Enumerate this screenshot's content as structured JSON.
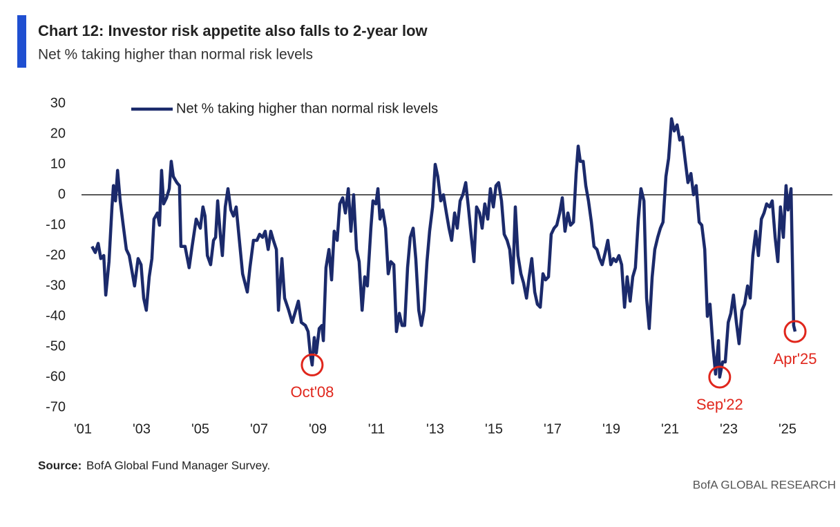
{
  "chart_data": {
    "type": "line",
    "title": "Chart 12: Investor risk appetite also falls to 2-year low",
    "subtitle": "Net % taking higher than normal risk levels",
    "source_label": "Source:",
    "source": "BofA Global Fund Manager Survey.",
    "brand": "BofA GLOBAL RESEARCH",
    "x": [
      2001.31,
      2001.42,
      2001.52,
      2001.61,
      2001.71,
      2001.78,
      2001.89,
      2001.99,
      2002.04,
      2002.11,
      2002.18,
      2002.27,
      2002.36,
      2002.48,
      2002.58,
      2002.76,
      2002.88,
      2002.98,
      2003.07,
      2003.16,
      2003.26,
      2003.35,
      2003.42,
      2003.54,
      2003.61,
      2003.68,
      2003.75,
      2003.85,
      2003.94,
      2004.01,
      2004.08,
      2004.2,
      2004.29,
      2004.34,
      2004.48,
      2004.62,
      2004.72,
      2004.86,
      2005.0,
      2005.09,
      2005.16,
      2005.24,
      2005.35,
      2005.45,
      2005.52,
      2005.59,
      2005.68,
      2005.75,
      2005.85,
      2005.94,
      2006.04,
      2006.13,
      2006.22,
      2006.32,
      2006.44,
      2006.6,
      2006.69,
      2006.81,
      2006.93,
      2007.02,
      2007.12,
      2007.21,
      2007.31,
      2007.4,
      2007.49,
      2007.59,
      2007.66,
      2007.78,
      2007.87,
      2008.01,
      2008.13,
      2008.25,
      2008.34,
      2008.44,
      2008.58,
      2008.67,
      2008.74,
      2008.81,
      2008.88,
      2008.95,
      2009.05,
      2009.14,
      2009.19,
      2009.28,
      2009.38,
      2009.47,
      2009.56,
      2009.66,
      2009.75,
      2009.85,
      2009.94,
      2010.04,
      2010.13,
      2010.22,
      2010.32,
      2010.41,
      2010.51,
      2010.6,
      2010.69,
      2010.81,
      2010.88,
      2010.98,
      2011.05,
      2011.12,
      2011.21,
      2011.31,
      2011.4,
      2011.49,
      2011.59,
      2011.68,
      2011.78,
      2011.87,
      2011.96,
      2012.06,
      2012.15,
      2012.25,
      2012.34,
      2012.44,
      2012.53,
      2012.62,
      2012.72,
      2012.81,
      2012.91,
      2013.0,
      2013.09,
      2013.19,
      2013.28,
      2013.38,
      2013.47,
      2013.56,
      2013.66,
      2013.75,
      2013.85,
      2013.94,
      2014.04,
      2014.13,
      2014.22,
      2014.32,
      2014.41,
      2014.51,
      2014.6,
      2014.69,
      2014.79,
      2014.88,
      2014.98,
      2015.07,
      2015.16,
      2015.26,
      2015.35,
      2015.45,
      2015.54,
      2015.64,
      2015.73,
      2015.82,
      2015.92,
      2016.01,
      2016.11,
      2016.2,
      2016.29,
      2016.39,
      2016.48,
      2016.58,
      2016.67,
      2016.76,
      2016.86,
      2016.95,
      2017.05,
      2017.14,
      2017.24,
      2017.33,
      2017.42,
      2017.52,
      2017.61,
      2017.71,
      2017.8,
      2017.87,
      2017.94,
      2018.04,
      2018.13,
      2018.22,
      2018.32,
      2018.41,
      2018.51,
      2018.6,
      2018.69,
      2018.79,
      2018.88,
      2018.98,
      2019.07,
      2019.16,
      2019.26,
      2019.35,
      2019.45,
      2019.54,
      2019.64,
      2019.73,
      2019.82,
      2019.92,
      2020.01,
      2020.11,
      2020.2,
      2020.29,
      2020.39,
      2020.48,
      2020.58,
      2020.67,
      2020.76,
      2020.86,
      2020.95,
      2021.05,
      2021.14,
      2021.24,
      2021.33,
      2021.42,
      2021.52,
      2021.61,
      2021.71,
      2021.8,
      2021.89,
      2021.99,
      2022.08,
      2022.18,
      2022.27,
      2022.36,
      2022.46,
      2022.55,
      2022.65,
      2022.69,
      2022.79,
      2022.88,
      2022.98,
      2023.07,
      2023.16,
      2023.26,
      2023.35,
      2023.45,
      2023.54,
      2023.64,
      2023.73,
      2023.82,
      2023.92,
      2024.01,
      2024.11,
      2024.2,
      2024.29,
      2024.39,
      2024.48,
      2024.58,
      2024.67,
      2024.76,
      2024.86,
      2024.95,
      2025.02,
      2025.12,
      2025.21,
      2025.26
    ],
    "series": [
      {
        "name": "Net % taking higher than normal risk levels",
        "color": "#1b2a6b",
        "values": [
          -17,
          -19,
          -16,
          -21,
          -20,
          -33,
          -22,
          -4,
          3,
          -2,
          8,
          -2,
          -9,
          -18,
          -20,
          -30,
          -21,
          -23,
          -34,
          -38,
          -27,
          -21,
          -8,
          -6,
          -10,
          8,
          -3,
          -1,
          2,
          11,
          6,
          4,
          3,
          -17,
          -17,
          -24,
          -17,
          -8,
          -11,
          -4,
          -7,
          -20,
          -23,
          -15,
          -14,
          -2,
          -13,
          -20,
          -4,
          2,
          -5,
          -7,
          -4,
          -14,
          -26,
          -32,
          -24,
          -15,
          -15,
          -13,
          -14,
          -12,
          -18,
          -12,
          -15,
          -18,
          -38,
          -21,
          -34,
          -38,
          -42,
          -38,
          -35,
          -42,
          -43,
          -45,
          -52,
          -56,
          -47,
          -52,
          -44,
          -43,
          -48,
          -24,
          -18,
          -28,
          -12,
          -15,
          -3,
          -1,
          -6,
          2,
          -12,
          0,
          -18,
          -22,
          -38,
          -27,
          -30,
          -11,
          -2,
          -3,
          2,
          -8,
          -5,
          -11,
          -26,
          -22,
          -23,
          -45,
          -39,
          -43,
          -43,
          -24,
          -14,
          -11,
          -21,
          -38,
          -43,
          -38,
          -22,
          -12,
          -4,
          10,
          6,
          -2,
          0,
          -6,
          -11,
          -15,
          -6,
          -11,
          -2,
          0,
          4,
          -4,
          -13,
          -22,
          -4,
          -6,
          -11,
          -3,
          -8,
          2,
          -4,
          3,
          4,
          -2,
          -13,
          -15,
          -18,
          -29,
          -4,
          -20,
          -26,
          -29,
          -34,
          -27,
          -21,
          -32,
          -36,
          -37,
          -26,
          -28,
          -27,
          -13,
          -11,
          -10,
          -6,
          -1,
          -12,
          -6,
          -10,
          -9,
          7,
          16,
          11,
          11,
          3,
          -2,
          -9,
          -17,
          -18,
          -21,
          -23,
          -19,
          -15,
          -23,
          -21,
          -22,
          -20,
          -23,
          -37,
          -27,
          -35,
          -27,
          -24,
          -8,
          2,
          -2,
          -34,
          -44,
          -27,
          -18,
          -14,
          -11,
          -9,
          6,
          12,
          25,
          21,
          23,
          18,
          19,
          11,
          4,
          7,
          0,
          3,
          -9,
          -10,
          -18,
          -40,
          -36,
          -50,
          -59,
          -48,
          -60,
          -55,
          -55,
          -42,
          -39,
          -33,
          -42,
          -49,
          -38,
          -36,
          -30,
          -34,
          -20,
          -12,
          -20,
          -8,
          -6,
          -3,
          -4,
          -2,
          -14,
          -22,
          -4,
          -14,
          3,
          -5,
          2,
          -43,
          -45
        ]
      }
    ],
    "xlim": [
      2001,
      2026.5
    ],
    "xticks": [
      {
        "value": 2001,
        "label": "'01"
      },
      {
        "value": 2003,
        "label": "'03"
      },
      {
        "value": 2005,
        "label": "'05"
      },
      {
        "value": 2007,
        "label": "'07"
      },
      {
        "value": 2009,
        "label": "'09"
      },
      {
        "value": 2011,
        "label": "'11"
      },
      {
        "value": 2013,
        "label": "'13"
      },
      {
        "value": 2015,
        "label": "'15"
      },
      {
        "value": 2017,
        "label": "'17"
      },
      {
        "value": 2019,
        "label": "'19"
      },
      {
        "value": 2021,
        "label": "'21"
      },
      {
        "value": 2023,
        "label": "'23"
      },
      {
        "value": 2025,
        "label": "'25"
      }
    ],
    "ylim": [
      -70,
      30
    ],
    "yticks": [
      -70,
      -60,
      -50,
      -40,
      -30,
      -20,
      -10,
      0,
      10,
      20,
      30
    ],
    "grid": false,
    "legend": "top",
    "annotations": [
      {
        "text": "Oct'08",
        "x": 2008.81,
        "y": -56,
        "color": "#e0261c"
      },
      {
        "text": "Sep'22",
        "x": 2022.69,
        "y": -60,
        "color": "#e0261c"
      },
      {
        "text": "Apr'25",
        "x": 2025.26,
        "y": -45,
        "color": "#e0261c"
      }
    ]
  }
}
